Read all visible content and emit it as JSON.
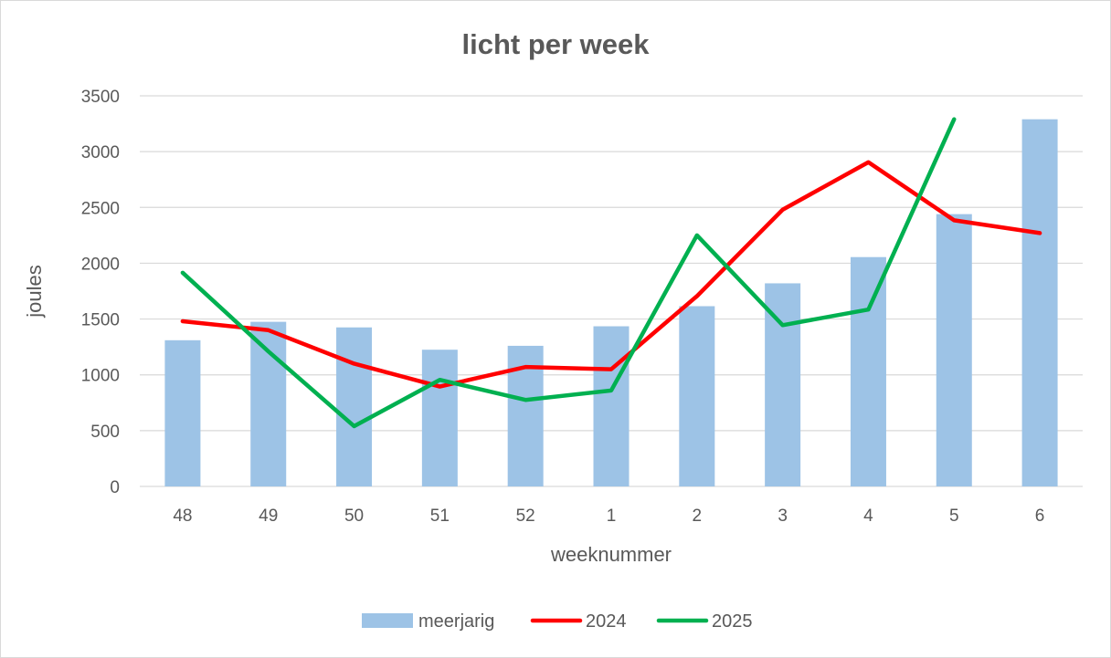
{
  "chart_data": {
    "type": "bar",
    "title": "licht per week",
    "xlabel": "weeknummer",
    "ylabel": "joules",
    "ylim": [
      0,
      3500
    ],
    "yticks": [
      0,
      500,
      1000,
      1500,
      2000,
      2500,
      3000,
      3500
    ],
    "grid": true,
    "legend_position": "bottom",
    "categories": [
      "48",
      "49",
      "50",
      "51",
      "52",
      "1",
      "2",
      "3",
      "4",
      "5",
      "6"
    ],
    "series": [
      {
        "name": "meerjarig",
        "type": "bar",
        "color": "#9dc3e6",
        "values": [
          1310,
          1475,
          1425,
          1225,
          1260,
          1435,
          1615,
          1820,
          2055,
          2440,
          3290
        ]
      },
      {
        "name": "2024",
        "type": "line",
        "color": "#ff0000",
        "values": [
          1480,
          1400,
          1100,
          895,
          1070,
          1050,
          1705,
          2480,
          2905,
          2385,
          2270
        ]
      },
      {
        "name": "2025",
        "type": "line",
        "color": "#00b050",
        "values": [
          1915,
          1210,
          540,
          955,
          775,
          860,
          2250,
          1445,
          1585,
          3290,
          null
        ]
      }
    ]
  }
}
